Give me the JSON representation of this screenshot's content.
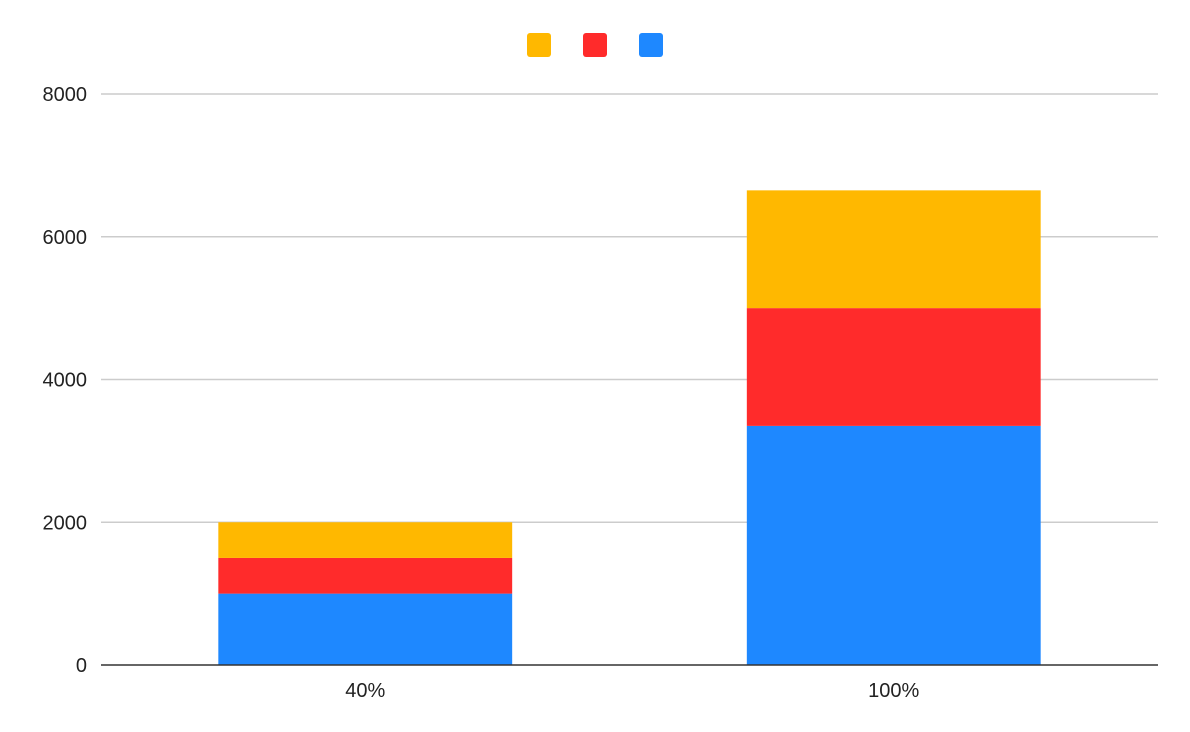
{
  "chart_data": {
    "type": "bar",
    "stacked": true,
    "title": "",
    "xlabel": "",
    "ylabel": "",
    "categories": [
      "40%",
      "100%"
    ],
    "series": [
      {
        "color": "#1E88FF",
        "values": [
          1000,
          3350
        ]
      },
      {
        "color": "#FF2B2B",
        "values": [
          500,
          1650
        ]
      },
      {
        "color": "#FFB800",
        "values": [
          500,
          1650
        ]
      }
    ],
    "legend": {
      "position": "top",
      "order": [
        2,
        1,
        0
      ]
    },
    "ylim": [
      0,
      8000
    ],
    "yticks": [
      0,
      2000,
      4000,
      6000,
      8000
    ],
    "grid": true
  }
}
